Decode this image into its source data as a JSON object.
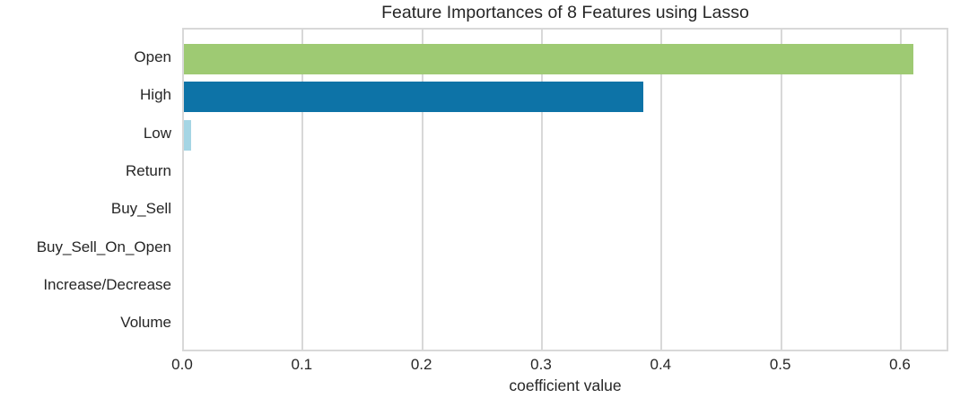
{
  "chart_data": {
    "type": "bar",
    "orientation": "horizontal",
    "title": "Feature Importances of 8 Features using Lasso",
    "xlabel": "coefficient value",
    "ylabel": "",
    "categories": [
      "Open",
      "High",
      "Low",
      "Return",
      "Buy_Sell",
      "Buy_Sell_On_Open",
      "Increase/Decrease",
      "Volume"
    ],
    "values": [
      0.61,
      0.384,
      0.006,
      0,
      0,
      0,
      0,
      0
    ],
    "bar_colors": [
      "#9eca73",
      "#0d73a7",
      "#a5d5e4",
      null,
      null,
      null,
      null,
      null
    ],
    "xticks": [
      0.0,
      0.1,
      0.2,
      0.3,
      0.4,
      0.5,
      0.6
    ],
    "xtick_labels": [
      "0.0",
      "0.1",
      "0.2",
      "0.3",
      "0.4",
      "0.5",
      "0.6"
    ],
    "xlim": [
      0,
      0.6406
    ],
    "grid": "vertical",
    "grid_color": "#d8d8d8",
    "spine_color": "#d8d8d8",
    "text_color": "#262626",
    "background_color": "#ffffff"
  }
}
